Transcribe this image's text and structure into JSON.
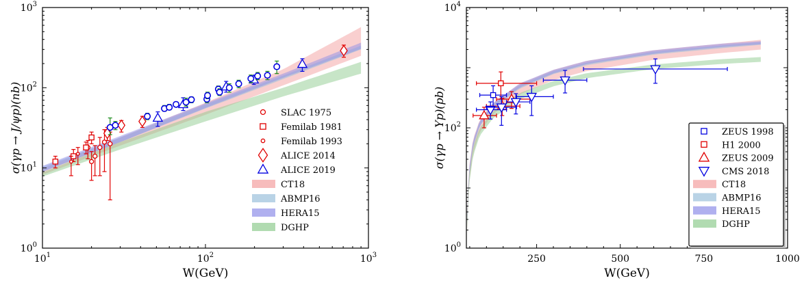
{
  "chart_data": [
    {
      "type": "scatter",
      "xlabel": "W(GeV)",
      "ylabel": "σ(γp → J/ψp)(nb)",
      "xscale": "log",
      "yscale": "log",
      "xlim": [
        10,
        1000
      ],
      "ylim": [
        1,
        1000
      ],
      "xticks": [
        {
          "v": 10,
          "base": "10",
          "exp": "1"
        },
        {
          "v": 100,
          "base": "10",
          "exp": "2"
        },
        {
          "v": 1000,
          "base": "10",
          "exp": "3"
        }
      ],
      "yticks": [
        {
          "v": 1,
          "base": "10",
          "exp": "0"
        },
        {
          "v": 10,
          "base": "10",
          "exp": "1"
        },
        {
          "v": 100,
          "base": "10",
          "exp": "2"
        },
        {
          "v": 1000,
          "base": "10",
          "exp": "3"
        }
      ],
      "legend_position": "lower-right",
      "bands": [
        {
          "name": "CT18",
          "color": "#f4a0a0",
          "opacity": 0.5,
          "x": [
            10,
            30,
            100,
            300,
            900
          ],
          "low": [
            8.2,
            19,
            46,
            107,
            250
          ],
          "high": [
            9.8,
            24,
            65,
            170,
            570
          ]
        },
        {
          "name": "ABMP16",
          "color": "#9bc1dc",
          "opacity": 0.55,
          "x": [
            10,
            30,
            100,
            300,
            900
          ],
          "low": [
            8.9,
            21,
            55,
            128,
            300
          ],
          "high": [
            10.3,
            24,
            62,
            142,
            335
          ]
        },
        {
          "name": "HERA15",
          "color": "#8f8fe8",
          "opacity": 0.5,
          "x": [
            10,
            30,
            100,
            300,
            900
          ],
          "low": [
            9.0,
            21,
            56,
            133,
            305
          ],
          "high": [
            10.6,
            25,
            64,
            150,
            365
          ]
        },
        {
          "name": "DGHP",
          "color": "#90cc90",
          "opacity": 0.5,
          "x": [
            10,
            30,
            100,
            300,
            900
          ],
          "low": [
            7.8,
            17,
            38,
            78,
            150
          ],
          "high": [
            8.8,
            21,
            50,
            100,
            210
          ]
        }
      ],
      "series": [
        {
          "name": "SLAC 1975",
          "marker": "circle-small",
          "color": "#e00000",
          "points": [
            {
              "x": 19.0,
              "y": 18,
              "lo": 13,
              "hi": 22
            },
            {
              "x": 20.0,
              "y": 12,
              "lo": 7,
              "hi": 16
            },
            {
              "x": 21.0,
              "y": 14,
              "lo": 8,
              "hi": 19
            },
            {
              "x": 22.5,
              "y": 18,
              "lo": 8,
              "hi": 24
            },
            {
              "x": 24.0,
              "y": 21,
              "lo": 9,
              "hi": 30
            },
            {
              "x": 26.0,
              "y": 20,
              "lo": 4,
              "hi": 28
            }
          ]
        },
        {
          "name": "Femilab 1981",
          "marker": "square",
          "color": "#e00000",
          "points": [
            {
              "x": 12.0,
              "y": 12,
              "lo": 10,
              "hi": 14
            },
            {
              "x": 15.5,
              "y": 14,
              "lo": 12,
              "hi": 17
            },
            {
              "x": 18.5,
              "y": 18,
              "lo": 15,
              "hi": 21
            },
            {
              "x": 20.0,
              "y": 24,
              "lo": 20,
              "hi": 28
            }
          ]
        },
        {
          "name": "Femilab 1993",
          "marker": "circle-tiny",
          "color": "#e00000",
          "points": [
            {
              "x": 15.0,
              "y": 12,
              "lo": 8,
              "hi": 14
            },
            {
              "x": 16.5,
              "y": 15,
              "lo": 11,
              "hi": 18
            }
          ]
        },
        {
          "name": "ALICE 2014",
          "marker": "diamond",
          "color": "#e00000",
          "points": [
            {
              "x": 25.0,
              "y": 27,
              "lo": 22,
              "hi": 32
            },
            {
              "x": 30.5,
              "y": 34,
              "lo": 28,
              "hi": 39
            },
            {
              "x": 41.0,
              "y": 38,
              "lo": 32,
              "hi": 44
            },
            {
              "x": 706,
              "y": 290,
              "lo": 240,
              "hi": 340
            }
          ]
        },
        {
          "name": "ALICE 2019",
          "marker": "triangle-up",
          "color": "#0000e0",
          "points": [
            {
              "x": 51,
              "y": 42,
              "lo": 33,
              "hi": 50
            },
            {
              "x": 73,
              "y": 62,
              "lo": 52,
              "hi": 75
            },
            {
              "x": 134,
              "y": 103,
              "lo": 88,
              "hi": 120
            },
            {
              "x": 198,
              "y": 126,
              "lo": 110,
              "hi": 140
            },
            {
              "x": 393,
              "y": 197,
              "lo": 160,
              "hi": 230
            }
          ]
        },
        {
          "name": "",
          "marker": "circle-open",
          "color": "#0000e0",
          "errcolor": "#1a8a1a",
          "points": [
            {
              "x": 26,
              "y": 32,
              "lo": 26,
              "hi": 42
            },
            {
              "x": 28,
              "y": 34,
              "lo": 30,
              "hi": 38
            },
            {
              "x": 44,
              "y": 44,
              "lo": 40,
              "hi": 48
            },
            {
              "x": 56,
              "y": 55,
              "lo": 51,
              "hi": 60
            },
            {
              "x": 60,
              "y": 57,
              "lo": 53,
              "hi": 62
            },
            {
              "x": 66,
              "y": 62,
              "lo": 58,
              "hi": 66
            },
            {
              "x": 76,
              "y": 66,
              "lo": 59,
              "hi": 74
            },
            {
              "x": 82,
              "y": 71,
              "lo": 65,
              "hi": 77
            },
            {
              "x": 102,
              "y": 72,
              "lo": 65,
              "hi": 80
            },
            {
              "x": 103,
              "y": 80,
              "lo": 73,
              "hi": 88
            },
            {
              "x": 120,
              "y": 96,
              "lo": 87,
              "hi": 105
            },
            {
              "x": 122,
              "y": 88,
              "lo": 80,
              "hi": 97
            },
            {
              "x": 140,
              "y": 100,
              "lo": 88,
              "hi": 112
            },
            {
              "x": 160,
              "y": 112,
              "lo": 100,
              "hi": 124
            },
            {
              "x": 190,
              "y": 130,
              "lo": 116,
              "hi": 144
            },
            {
              "x": 209,
              "y": 140,
              "lo": 126,
              "hi": 155
            },
            {
              "x": 240,
              "y": 143,
              "lo": 126,
              "hi": 160
            },
            {
              "x": 274,
              "y": 183,
              "lo": 150,
              "hi": 215
            }
          ]
        }
      ]
    },
    {
      "type": "scatter",
      "xlabel": "W(GeV)",
      "ylabel": "σ(γp → Υp)(pb)",
      "xscale": "linear",
      "yscale": "log",
      "xlim": [
        40,
        1000
      ],
      "ylim": [
        1,
        10000
      ],
      "xticks": [
        {
          "v": 250,
          "label": "250"
        },
        {
          "v": 500,
          "label": "500"
        },
        {
          "v": 750,
          "label": "750"
        },
        {
          "v": 1000,
          "label": "1000"
        }
      ],
      "yticks": [
        {
          "v": 1,
          "base": "10",
          "exp": "0"
        },
        {
          "v": 100,
          "base": "10",
          "exp": "2"
        },
        {
          "v": 10000,
          "base": "10",
          "exp": "4"
        }
      ],
      "legend_position": "lower-right",
      "bands": [
        {
          "name": "CT18",
          "color": "#f4a0a0",
          "opacity": 0.5,
          "x": [
            42,
            48,
            60,
            80,
            120,
            200,
            300,
            400,
            600,
            800,
            920
          ],
          "low": [
            2,
            12,
            38,
            85,
            170,
            360,
            620,
            880,
            1350,
            1750,
            2000
          ],
          "high": [
            4,
            22,
            65,
            135,
            260,
            540,
            920,
            1300,
            1950,
            2500,
            2900
          ]
        },
        {
          "name": "ABMP16",
          "color": "#9bc1dc",
          "opacity": 0.55,
          "x": [
            42,
            48,
            60,
            80,
            120,
            200,
            300,
            400,
            600,
            800,
            920
          ],
          "low": [
            2.5,
            15,
            48,
            105,
            210,
            450,
            780,
            1100,
            1650,
            2100,
            2400
          ],
          "high": [
            3.2,
            19,
            58,
            125,
            245,
            520,
            880,
            1220,
            1850,
            2350,
            2650
          ]
        },
        {
          "name": "HERA15",
          "color": "#8f8fe8",
          "opacity": 0.5,
          "x": [
            42,
            48,
            60,
            80,
            120,
            200,
            300,
            400,
            600,
            800,
            920
          ],
          "low": [
            2.5,
            15,
            50,
            110,
            220,
            470,
            800,
            1150,
            1700,
            2200,
            2450
          ],
          "high": [
            3.5,
            20,
            62,
            132,
            260,
            550,
            920,
            1300,
            1950,
            2500,
            2750
          ]
        },
        {
          "name": "DGHP",
          "color": "#90cc90",
          "opacity": 0.5,
          "x": [
            42,
            48,
            60,
            80,
            120,
            200,
            300,
            400,
            600,
            800,
            920
          ],
          "low": [
            2,
            11,
            34,
            74,
            145,
            300,
            490,
            670,
            950,
            1150,
            1250
          ],
          "high": [
            3,
            16,
            48,
            100,
            190,
            380,
            600,
            810,
            1130,
            1380,
            1500
          ]
        }
      ],
      "series": [
        {
          "name": "ZEUS 1998",
          "marker": "square",
          "color": "#0000e0",
          "points": [
            {
              "x": 120,
              "y": 350,
              "lo": 220,
              "hi": 500,
              "xlo": 80,
              "xhi": 160
            }
          ]
        },
        {
          "name": "H1 2000",
          "marker": "square",
          "color": "#e00000",
          "points": [
            {
              "x": 143,
              "y": 550,
              "lo": 300,
              "hi": 850,
              "xlo": 70,
              "xhi": 250
            }
          ]
        },
        {
          "name": "ZEUS 2009",
          "marker": "triangle-up",
          "color": "#e00000",
          "points": [
            {
              "x": 93,
              "y": 160,
              "lo": 100,
              "hi": 220,
              "xlo": 60,
              "xhi": 130
            },
            {
              "x": 147,
              "y": 230,
              "lo": 160,
              "hi": 310,
              "xlo": 100,
              "xhi": 200
            },
            {
              "x": 175,
              "y": 300,
              "lo": 210,
              "hi": 400,
              "xlo": 130,
              "xhi": 230
            }
          ]
        },
        {
          "name": "CMS 2018",
          "marker": "triangle-down",
          "color": "#0000e0",
          "points": [
            {
              "x": 112,
              "y": 200,
              "lo": 140,
              "hi": 270,
              "xlo": 70,
              "xhi": 160
            },
            {
              "x": 145,
              "y": 220,
              "lo": 110,
              "hi": 330,
              "xlo": 100,
              "xhi": 190
            },
            {
              "x": 188,
              "y": 270,
              "lo": 170,
              "hi": 370,
              "xlo": 160,
              "xhi": 230
            },
            {
              "x": 235,
              "y": 330,
              "lo": 160,
              "hi": 500,
              "xlo": 190,
              "xhi": 300
            },
            {
              "x": 335,
              "y": 620,
              "lo": 380,
              "hi": 900,
              "xlo": 270,
              "xhi": 400
            },
            {
              "x": 605,
              "y": 950,
              "lo": 550,
              "hi": 1400,
              "xlo": 390,
              "xhi": 820
            }
          ]
        }
      ]
    }
  ]
}
